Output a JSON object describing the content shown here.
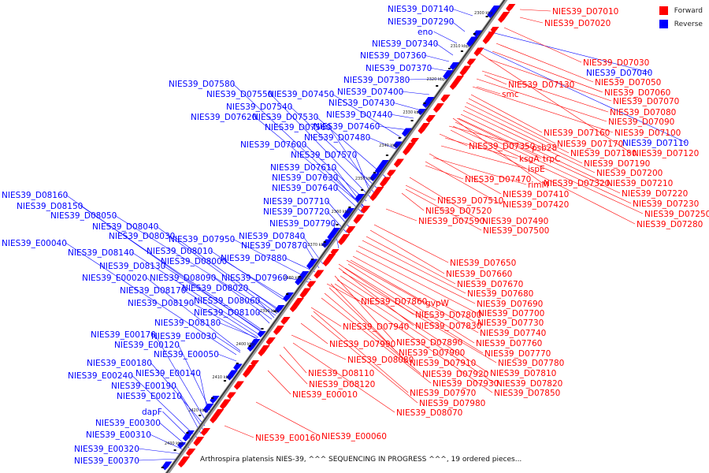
{
  "legend": {
    "forward": {
      "label": "Forward",
      "color": "#ff0000"
    },
    "reverse": {
      "label": "Reverse",
      "color": "#0000ff"
    }
  },
  "caption": "Arthrospira platensis NIES-39, ^^^ SEQUENCING IN PROGRESS ^^^, 19 ordered pieces...",
  "axis_ticks": [
    "2300 kbp",
    "2310 kbp",
    "2320 kbp",
    "2330 kbp",
    "2340 kbp",
    "2350 kbp",
    "2360 kbp",
    "2370 kbp",
    "2380 kbp",
    "2390 kbp",
    "2400 kbp",
    "2410 kbp",
    "2420 kbp",
    "2430 kbp"
  ],
  "reverse_labels": [
    "NIES39_D07140",
    "NIES39_D07290",
    "eno",
    "NIES39_D07340",
    "NIES39_D07360",
    "NIES39_D07370",
    "NIES39_D07380",
    "NIES39_D07580",
    "NIES39_D07550",
    "NIES39_D07450",
    "NIES39_D07400",
    "NIES39_D07540",
    "NIES39_D07430",
    "NIES39_D07620",
    "NIES39_D07530",
    "NIES39_D07440",
    "NIES39_D07560",
    "NIES39_D07460",
    "NIES39_D07480",
    "NIES39_D07600",
    "NIES39_D07570",
    "NIES39_D07610",
    "NIES39_D07630",
    "NIES39_D07640",
    "NIES39_D08160",
    "NIES39_D07710",
    "NIES39_D08150",
    "NIES39_D07720",
    "NIES39_D08050",
    "NIES39_D07790",
    "NIES39_D08040",
    "NIES39_D07840",
    "NIES39_D08030",
    "NIES39_D07950",
    "NIES39_E00040",
    "NIES39_D07870",
    "NIES39_D08140",
    "NIES39_D08010",
    "NIES39_D07880",
    "NIES39_D08130",
    "NIES39_D08000",
    "NIES39_E00020",
    "NIES39_D08090",
    "NIES39_D07960",
    "NIES39_D08170",
    "NIES39_D08020",
    "NIES39_D08190",
    "NIES39_D08060",
    "NIES39_D08100",
    "NIES39_D08180",
    "NIES39_E00170",
    "NIES39_E00030",
    "NIES39_E00120",
    "NIES39_E00050",
    "NIES39_E00180",
    "NIES39_E00140",
    "NIES39_E00240",
    "NIES39_E00190",
    "NIES39_E00210",
    "dapF",
    "NIES39_E00300",
    "NIES39_E00310",
    "NIES39_E00320",
    "NIES39_E00370",
    "NIES39_D07040",
    "NIES39_D07110"
  ],
  "forward_labels": [
    "NIES39_D07010",
    "NIES39_D07020",
    "NIES39_D07030",
    "NIES39_D07050",
    "NIES39_D07130",
    "NIES39_D07060",
    "smc",
    "NIES39_D07070",
    "NIES39_D07080",
    "NIES39_D07090",
    "NIES39_D07100",
    "NIES39_D07160",
    "NIES39_D07170",
    "NIES39_D07350",
    "psb28",
    "NIES39_D07180",
    "NIES39_D07120",
    "ksgA",
    "trpC",
    "NIES39_D07190",
    "ispE",
    "NIES39_D07200",
    "NIES39_D07470",
    "rimM",
    "NIES39_D07320",
    "NIES39_D07210",
    "NIES39_D07410",
    "NIES39_D07220",
    "NIES39_D07510",
    "NIES39_D07420",
    "NIES39_D07230",
    "NIES39_D07520",
    "NIES39_D07250",
    "NIES39_D07590",
    "NIES39_D07490",
    "NIES39_D07280",
    "NIES39_D07500",
    "NIES39_D07650",
    "NIES39_D07660",
    "NIES39_D07670",
    "NIES39_D07680",
    "NIES39_D07860",
    "gvpW",
    "NIES39_D07690",
    "NIES39_D07800",
    "NIES39_D07700",
    "NIES39_D07940",
    "NIES39_D07830",
    "NIES39_D07730",
    "NIES39_D07740",
    "NIES39_D07990",
    "NIES39_D07890",
    "NIES39_D07760",
    "NIES39_D07900",
    "NIES39_D07770",
    "NIES39_D08080",
    "NIES39_D07910",
    "NIES39_D07780",
    "NIES39_D08110",
    "NIES39_D07920",
    "NIES39_D07810",
    "NIES39_D08120",
    "NIES39_D07930",
    "NIES39_D07820",
    "NIES39_E00010",
    "NIES39_D07970",
    "NIES39_D07850",
    "NIES39_D07980",
    "NIES39_D08070",
    "NIES39_E00160",
    "NIES39_E00060"
  ]
}
